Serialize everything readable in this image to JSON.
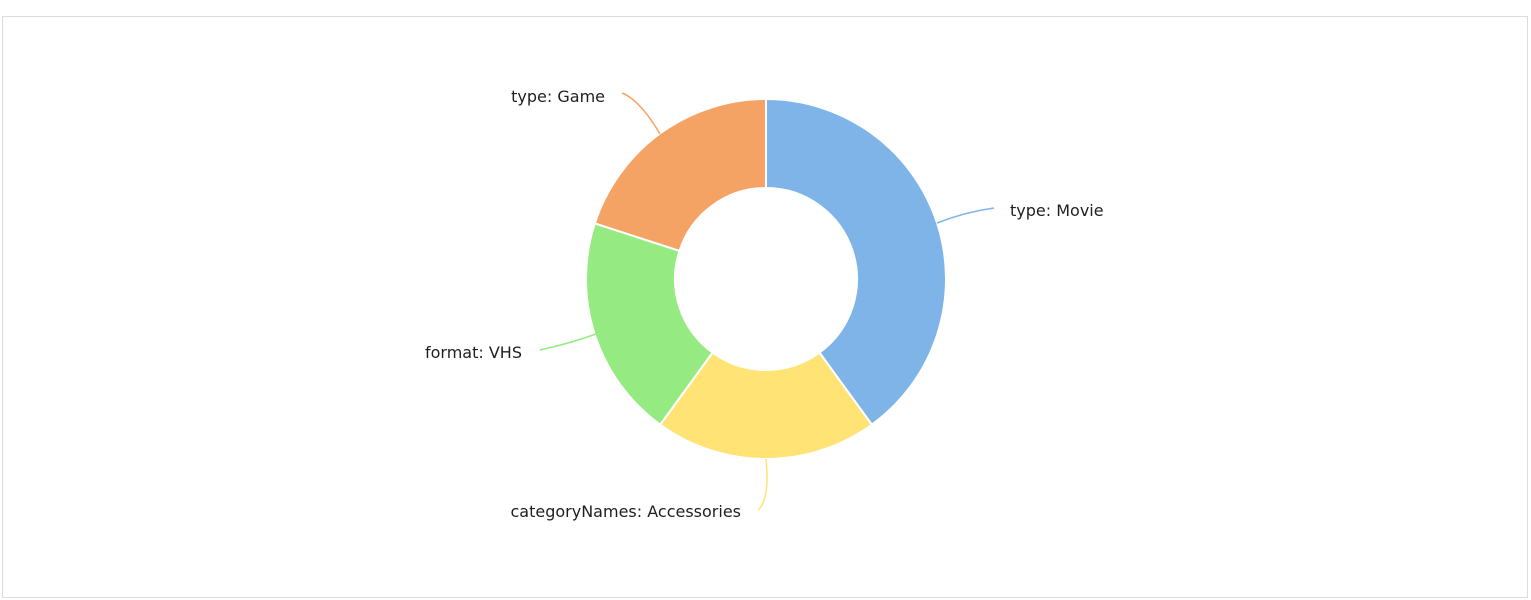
{
  "chart_data": {
    "type": "pie",
    "donut": true,
    "slices": [
      {
        "label": "type: Movie",
        "value": 40,
        "color": "#7eb4e8"
      },
      {
        "label": "categoryNames: Accessories",
        "value": 20,
        "color": "#ffe375"
      },
      {
        "label": "format: VHS",
        "value": 20,
        "color": "#95eb82"
      },
      {
        "label": "type: Game",
        "value": 20,
        "color": "#f5a364"
      }
    ]
  }
}
